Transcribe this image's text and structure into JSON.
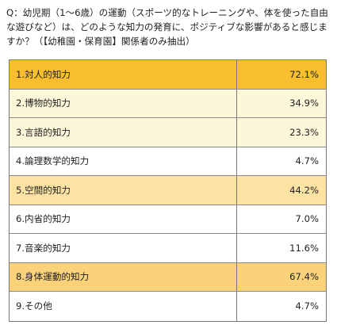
{
  "question": "Q：幼児期（1～6歳）の運動（スポーツ的なトレーニングや、体を使った自由な遊びなど）は、どのような知力の発育に、ポジティブな影響があると感じますか？（【幼稚園・保育園】関係者のみ抽出）",
  "rows": [
    {
      "label": "1.対人的知力",
      "value": "72.1%",
      "color": "#f8be2d"
    },
    {
      "label": "2.博物的知力",
      "value": "34.9%",
      "color": "#fcf7d9"
    },
    {
      "label": "3.言語的知力",
      "value": "23.3%",
      "color": "#fcf7d9"
    },
    {
      "label": "4.論理数学的知力",
      "value": "4.7%",
      "color": "#ffffff"
    },
    {
      "label": "5.空間的知力",
      "value": "44.2%",
      "color": "#fce3a4"
    },
    {
      "label": "6.内省的知力",
      "value": "7.0%",
      "color": "#ffffff"
    },
    {
      "label": "7.音楽的知力",
      "value": "11.6%",
      "color": "#ffffff"
    },
    {
      "label": "8.身体運動的知力",
      "value": "67.4%",
      "color": "#fad27a"
    },
    {
      "label": "9.その他",
      "value": "4.7%",
      "color": "#ffffff"
    }
  ]
}
